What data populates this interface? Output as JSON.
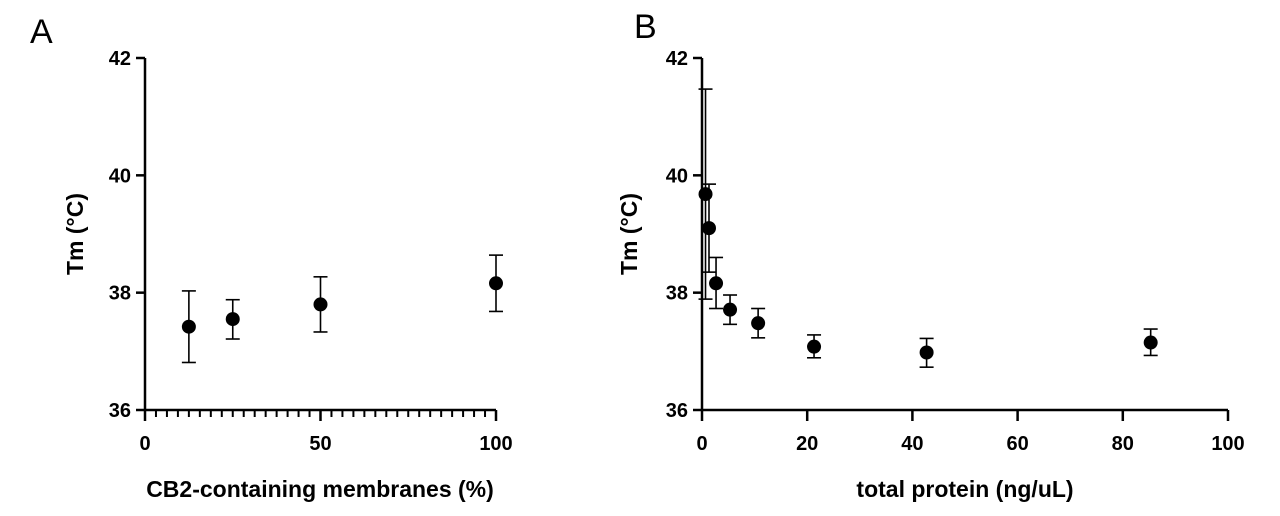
{
  "chart_data": [
    {
      "type": "scatter",
      "panel_label": "A",
      "xlabel": "CB2-containing membranes (%)",
      "ylabel": "Tm (°C)",
      "xlim": [
        0,
        100
      ],
      "ylim": [
        36,
        42
      ],
      "x_ticks": [
        0,
        50,
        100
      ],
      "y_ticks": [
        36,
        38,
        40,
        42
      ],
      "x_minor_ticks": true,
      "grid": false,
      "series": [
        {
          "marker": "filled-circle",
          "color": "#000000",
          "points": [
            {
              "x": 12.5,
              "y": 37.42,
              "err_low": 36.81,
              "err_high": 38.03
            },
            {
              "x": 25,
              "y": 37.55,
              "err_low": 37.21,
              "err_high": 37.88
            },
            {
              "x": 50,
              "y": 37.8,
              "err_low": 37.33,
              "err_high": 38.27
            },
            {
              "x": 100,
              "y": 38.16,
              "err_low": 37.68,
              "err_high": 38.64
            }
          ]
        }
      ]
    },
    {
      "type": "scatter",
      "panel_label": "B",
      "xlabel": "total protein (ng/uL)",
      "ylabel": "Tm (°C)",
      "xlim": [
        0,
        100
      ],
      "ylim": [
        36,
        42
      ],
      "x_ticks": [
        0,
        20,
        40,
        60,
        80,
        100
      ],
      "y_ticks": [
        36,
        38,
        40,
        42
      ],
      "grid": false,
      "series": [
        {
          "marker": "filled-circle",
          "color": "#000000",
          "points": [
            {
              "x": 0.67,
              "y": 39.68,
              "err_low": 37.89,
              "err_high": 41.47
            },
            {
              "x": 1.33,
              "y": 39.1,
              "err_low": 38.35,
              "err_high": 39.85
            },
            {
              "x": 2.67,
              "y": 38.16,
              "err_low": 37.73,
              "err_high": 38.6
            },
            {
              "x": 5.33,
              "y": 37.71,
              "err_low": 37.46,
              "err_high": 37.96
            },
            {
              "x": 10.67,
              "y": 37.48,
              "err_low": 37.23,
              "err_high": 37.73
            },
            {
              "x": 21.3,
              "y": 37.08,
              "err_low": 36.89,
              "err_high": 37.28
            },
            {
              "x": 42.7,
              "y": 36.98,
              "err_low": 36.73,
              "err_high": 37.22
            },
            {
              "x": 85.3,
              "y": 37.15,
              "err_low": 36.93,
              "err_high": 37.38
            }
          ]
        }
      ]
    }
  ]
}
